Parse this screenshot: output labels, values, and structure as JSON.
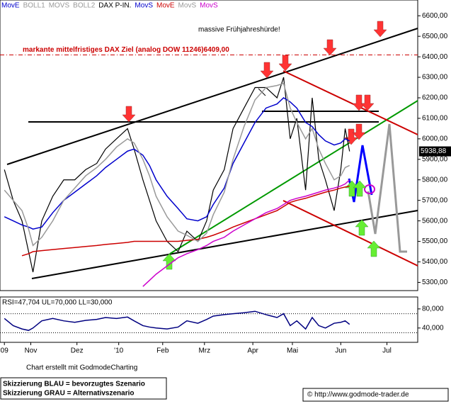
{
  "chart_data": {
    "type": "line",
    "legend": [
      {
        "name": "MovE",
        "color": "#0000cc"
      },
      {
        "name": "BOLL1",
        "color": "#999999"
      },
      {
        "name": "MOVS",
        "color": "#999999"
      },
      {
        "name": "BOLL2",
        "color": "#999999"
      },
      {
        "name": "DAX P-IN.",
        "color": "#000000"
      },
      {
        "name": "MovS",
        "color": "#0000cc"
      },
      {
        "name": "MovE",
        "color": "#cc0000"
      },
      {
        "name": "MovS",
        "color": "#999999"
      },
      {
        "name": "MovS",
        "color": "#cc00cc"
      }
    ],
    "x": [
      2,
      6,
      10,
      13,
      15,
      19,
      24,
      29,
      34,
      39,
      44,
      48,
      53,
      58,
      61,
      65,
      68,
      71,
      76,
      81,
      85,
      90,
      94,
      97,
      102,
      106,
      111,
      116,
      121,
      126,
      129,
      132,
      135,
      139,
      142,
      145,
      148,
      152,
      155,
      157,
      159
    ],
    "series": [
      {
        "color": "#000000",
        "values": [
          5850,
          5700,
          5600,
          5450,
          5350,
          5600,
          5720,
          5800,
          5800,
          5850,
          5880,
          5950,
          6000,
          6050,
          5950,
          5800,
          5700,
          5600,
          5500,
          5450,
          5550,
          5500,
          5600,
          5750,
          5850,
          6050,
          6150,
          6250,
          6250,
          6200,
          6300,
          6000,
          6100,
          5750,
          6200,
          5900,
          5800,
          5650,
          5850,
          6050,
          5938.88
        ],
        "value_labels": [
          null,
          null,
          null,
          null,
          null,
          null,
          null,
          null,
          null,
          null,
          null,
          null,
          null,
          null,
          null,
          null,
          null,
          null,
          null,
          null,
          null,
          null,
          null,
          null,
          null,
          null,
          null,
          null,
          null,
          null,
          null,
          null,
          null,
          null,
          null,
          null,
          null,
          null,
          null,
          null,
          "5938,88"
        ]
      },
      {
        "color": "#0000cc",
        "values": [
          5620,
          5600,
          5580,
          5570,
          5560,
          5570,
          5640,
          5700,
          5740,
          5780,
          5820,
          5860,
          5900,
          5940,
          5950,
          5920,
          5870,
          5800,
          5720,
          5660,
          5610,
          5600,
          5620,
          5680,
          5760,
          5880,
          5980,
          6080,
          6150,
          6170,
          6200,
          6180,
          6150,
          6080,
          6060,
          6020,
          5990,
          5970,
          5980,
          6000,
          5990
        ]
      },
      {
        "color": "#cc0000",
        "values": [
          null,
          null,
          5430,
          5440,
          5450,
          5455,
          5460,
          5465,
          5470,
          5475,
          5480,
          5485,
          5490,
          5495,
          5500,
          5500,
          5500,
          5500,
          5500,
          5500,
          5505,
          5510,
          5520,
          5530,
          5550,
          5570,
          5590,
          5610,
          5630,
          5650,
          5670,
          5690,
          5700,
          5710,
          5720,
          5730,
          5740,
          5750,
          5760,
          5765,
          5770
        ]
      },
      {
        "color": "#cc00cc",
        "values": [
          null,
          null,
          null,
          null,
          null,
          null,
          null,
          null,
          null,
          null,
          null,
          null,
          null,
          null,
          null,
          5280,
          5310,
          5340,
          5380,
          5420,
          5440,
          5460,
          5480,
          5500,
          5520,
          5550,
          5580,
          5610,
          5640,
          5660,
          5680,
          5700,
          5710,
          5720,
          5730,
          5740,
          5750,
          5760,
          5770,
          5780,
          5800
        ]
      },
      {
        "color": "#999999",
        "values": [
          5750,
          5700,
          5650,
          5560,
          5480,
          5520,
          5600,
          5700,
          5760,
          5820,
          5860,
          5900,
          5960,
          6000,
          5980,
          5900,
          5820,
          5720,
          5620,
          5550,
          5530,
          5500,
          5540,
          5630,
          5740,
          5900,
          6060,
          6190,
          6250,
          6260,
          6270,
          6150,
          6080,
          6000,
          6050,
          5950,
          5880,
          5800,
          5820,
          5860,
          5870
        ]
      }
    ],
    "xlim": [
      0,
      190
    ],
    "xticks": [
      {
        "value": 2,
        "label": "09"
      },
      {
        "value": 14,
        "label": "Nov"
      },
      {
        "value": 35,
        "label": "Dez"
      },
      {
        "value": 54,
        "label": "'10"
      },
      {
        "value": 74,
        "label": "Feb"
      },
      {
        "value": 93,
        "label": "Mrz"
      },
      {
        "value": 115,
        "label": "Apr"
      },
      {
        "value": 133,
        "label": "Mai"
      },
      {
        "value": 155,
        "label": "Jun"
      },
      {
        "value": 176,
        "label": "Jul"
      }
    ],
    "ylim": [
      5260,
      6670
    ],
    "yticks": [
      {
        "value": 5300,
        "label": "5300,00"
      },
      {
        "value": 5400,
        "label": "5400,00"
      },
      {
        "value": 5500,
        "label": "5500,00"
      },
      {
        "value": 5600,
        "label": "5600,00"
      },
      {
        "value": 5700,
        "label": "5700,00"
      },
      {
        "value": 5800,
        "label": "5800,00"
      },
      {
        "value": 5900,
        "label": "5900,00"
      },
      {
        "value": 6000,
        "label": "6000,00"
      },
      {
        "value": 6100,
        "label": "6100,00"
      },
      {
        "value": 6200,
        "label": "6200,00"
      },
      {
        "value": 6300,
        "label": "6300,00"
      },
      {
        "value": 6400,
        "label": "6400,00"
      },
      {
        "value": 6500,
        "label": "6500,00"
      },
      {
        "value": 6600,
        "label": "6600,00"
      }
    ],
    "hline": {
      "value": 6409,
      "label": "markante mittelfristiges DAX Ziel  (analog DOW 11246)6409,00",
      "color": "#cc0000"
    },
    "annotation": "massive Frühjahreshürde!",
    "rsi": {
      "title": "RSI=47,704 UL=70,000 LL=30,000",
      "color": "#000080",
      "upper": 70,
      "lower": 30,
      "values": [
        60,
        45,
        38,
        35,
        40,
        55,
        60,
        55,
        52,
        56,
        58,
        62,
        60,
        63,
        55,
        45,
        42,
        40,
        38,
        42,
        55,
        50,
        58,
        65,
        68,
        70,
        72,
        75,
        68,
        62,
        70,
        45,
        55,
        38,
        62,
        45,
        40,
        50,
        52,
        55,
        47.704
      ],
      "ylim": [
        10,
        105
      ],
      "yticks": [
        {
          "value": 40,
          "label": "40,000"
        },
        {
          "value": 80,
          "label": "80,000"
        }
      ]
    },
    "credit": "Chart erstellt mit GodmodeCharting",
    "notes": [
      "Skizzierung BLAU = bevorzugtes Szenario",
      "Skizzierung GRAU = Alternativszenario"
    ],
    "copyright": "© http://www.godmode-trader.de"
  }
}
